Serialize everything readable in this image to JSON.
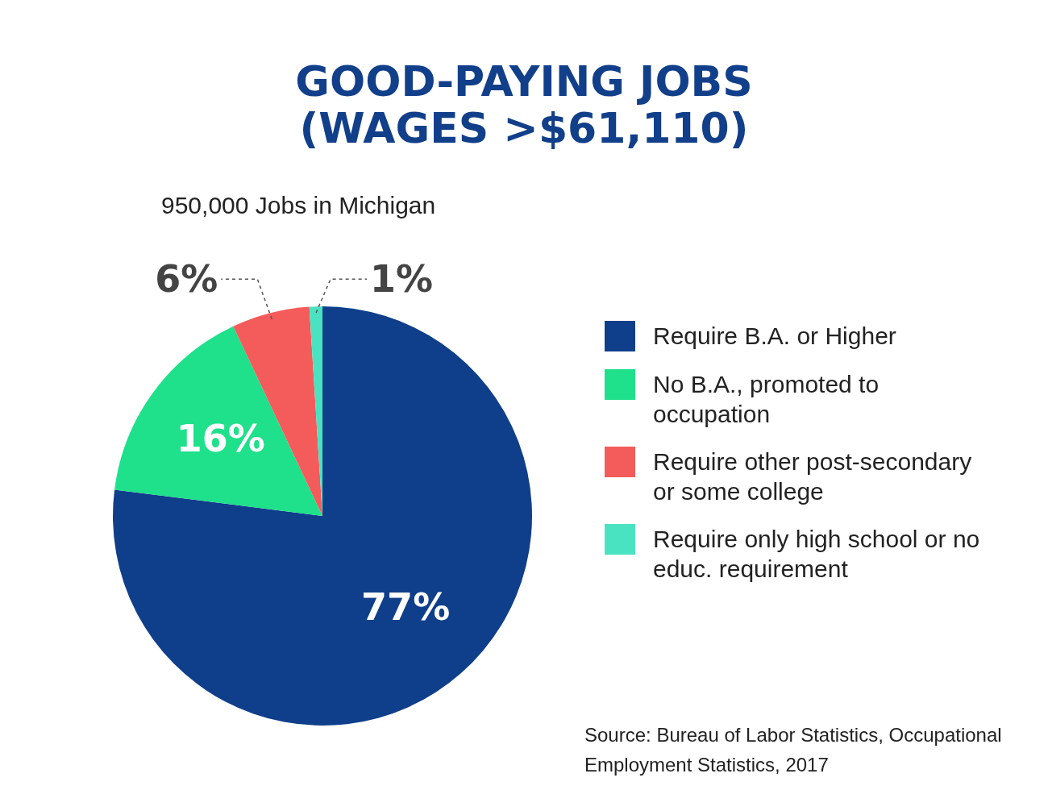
{
  "chart_data": {
    "type": "pie",
    "title": "GOOD-PAYING JOBS\n(WAGES >$61,110)",
    "subtitle": "950,000 Jobs in Michigan",
    "categories": [
      "Require B.A. or Higher",
      "No B.A., promoted to occupation",
      "Require other post-secondary or some college",
      "Require only high school or no educ. requirement"
    ],
    "values": [
      77,
      16,
      6,
      1
    ],
    "colors": [
      "#0f3f8a",
      "#1fe08b",
      "#f45b5b",
      "#4ae3c2"
    ],
    "value_labels": [
      "77%",
      "16%",
      "6%",
      "1%"
    ],
    "legend": "right",
    "annotations": [
      "Source: Bureau of Labor Statistics, Occupational Employment Statistics, 2017"
    ]
  }
}
